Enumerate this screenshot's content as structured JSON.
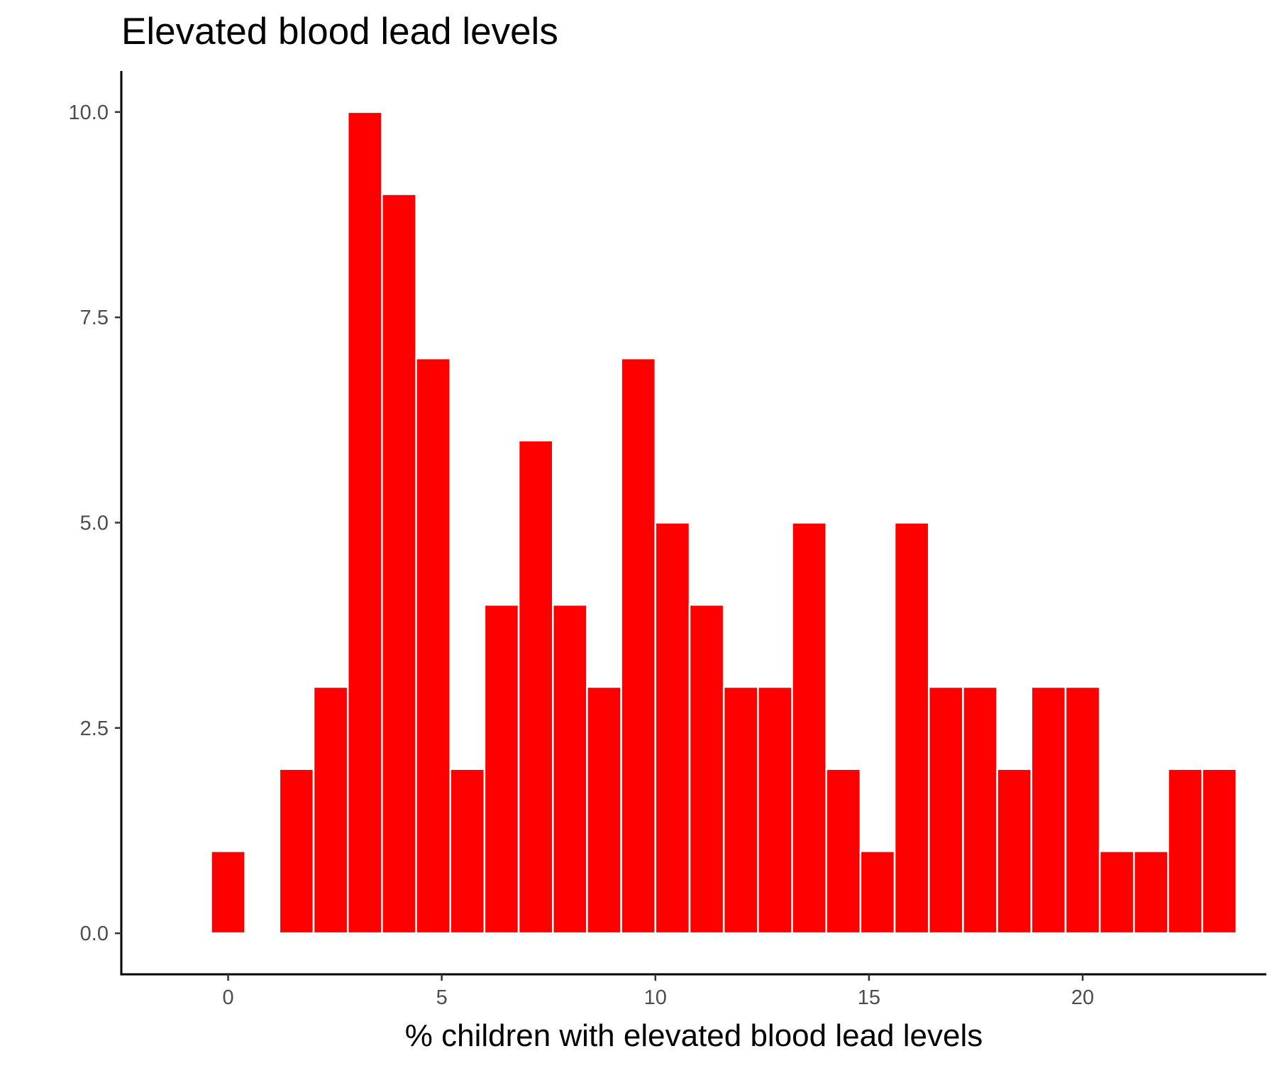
{
  "chart_data": {
    "type": "bar",
    "title": "Elevated blood lead levels",
    "xlabel": "% children with elevated blood lead levels",
    "ylabel": "",
    "bin_width": 0.8,
    "x": [
      0.0,
      1.6,
      2.4,
      3.2,
      4.0,
      4.8,
      5.6,
      6.4,
      7.2,
      8.0,
      8.8,
      9.6,
      10.4,
      11.2,
      12.0,
      12.8,
      13.6,
      14.4,
      15.2,
      16.0,
      16.8,
      17.6,
      18.4,
      19.2,
      20.0,
      20.8,
      21.6,
      22.4,
      23.2
    ],
    "values": [
      1,
      2,
      3,
      10,
      9,
      7,
      2,
      4,
      6,
      4,
      3,
      7,
      5,
      4,
      3,
      3,
      5,
      2,
      1,
      5,
      3,
      3,
      2,
      3,
      3,
      1,
      1,
      2,
      2
    ],
    "xlim": [
      -2.5,
      24.3
    ],
    "ylim": [
      -0.5,
      10.5
    ],
    "xticks": [
      0,
      5,
      10,
      15,
      20
    ],
    "xtick_labels": [
      "0",
      "5",
      "10",
      "15",
      "20"
    ],
    "yticks": [
      0,
      2.5,
      5,
      7.5,
      10
    ],
    "ytick_labels": [
      "0.0",
      "2.5",
      "5.0",
      "7.5",
      "10.0"
    ],
    "bar_color": "#FF0000",
    "bar_edge_color": "#FFFFFF",
    "grid": false,
    "legend": "none"
  }
}
